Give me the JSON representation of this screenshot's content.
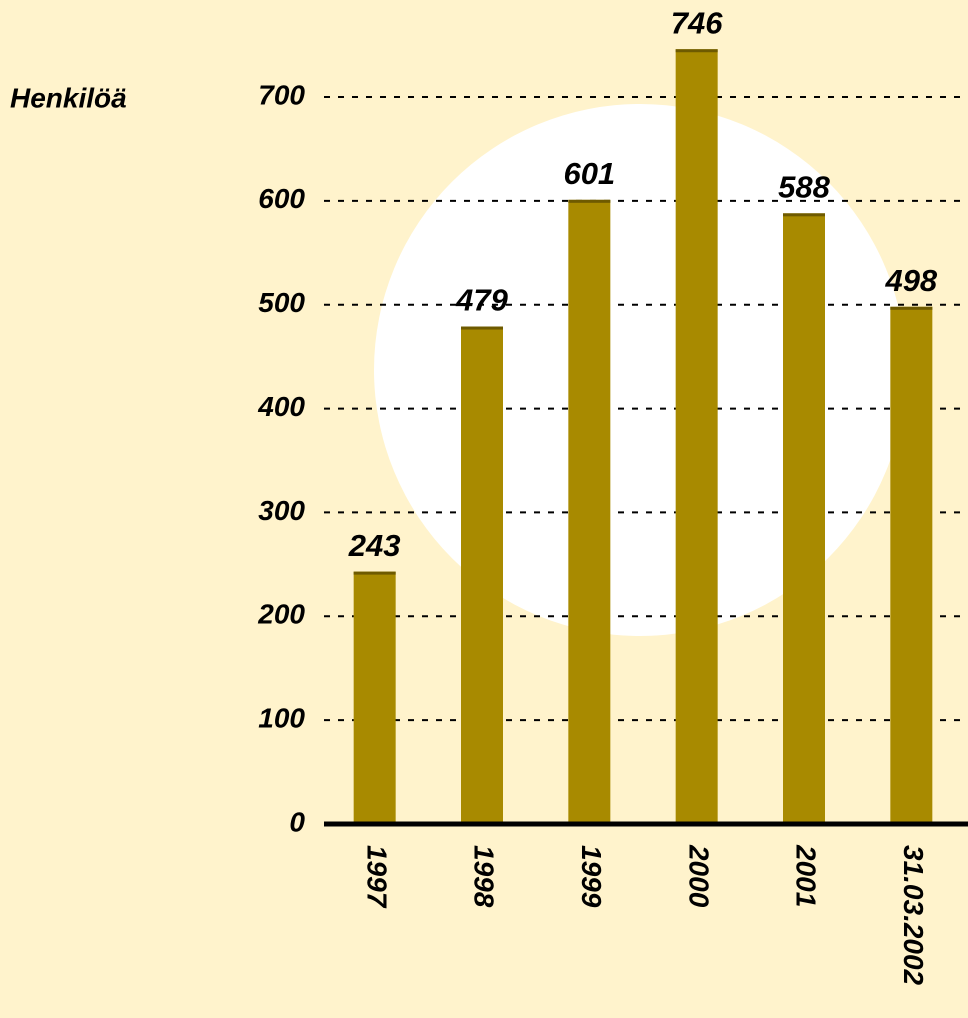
{
  "chart_data": {
    "type": "bar",
    "y_axis_label": "Henkilöä",
    "categories": [
      "1997",
      "1998",
      "1999",
      "2000",
      "2001",
      "31.03.2002"
    ],
    "values": [
      243,
      479,
      601,
      746,
      588,
      498
    ],
    "color": "#a88a00",
    "ylim": [
      0,
      700
    ],
    "yticks": [
      0,
      100,
      200,
      300,
      400,
      500,
      600,
      700
    ],
    "grid": true
  }
}
